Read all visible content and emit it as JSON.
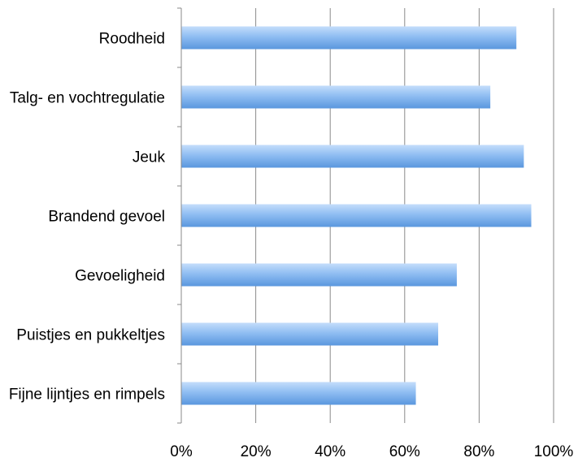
{
  "chart_data": {
    "type": "bar",
    "orientation": "horizontal",
    "categories": [
      "Roodheid",
      "Talg- en vochtregulatie",
      "Jeuk",
      "Brandend gevoel",
      "Gevoeligheid",
      "Puistjes en pukkeltjes",
      "Fijne lijntjes en rimpels"
    ],
    "values": [
      90,
      83,
      92,
      94,
      74,
      69,
      63
    ],
    "xlim": [
      0,
      100
    ],
    "x_ticks": [
      "0%",
      "20%",
      "40%",
      "60%",
      "80%",
      "100%"
    ],
    "grid": "vertical",
    "legend": "none",
    "colors": {
      "bar_light": "#a9cdf7",
      "bar_dark": "#5d9ae0",
      "grid": "#8a8a8a"
    }
  }
}
